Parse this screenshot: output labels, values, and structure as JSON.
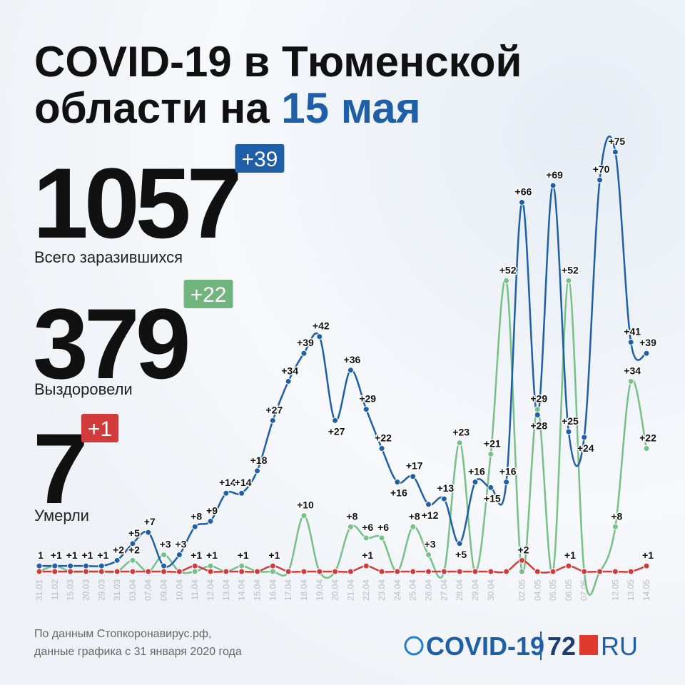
{
  "header": {
    "title_line1": "COVID-19 в Тюменской",
    "title_line2": "области на",
    "title_date": "15 мая"
  },
  "stats": [
    {
      "value": 1057,
      "change": "+39",
      "label": "Всего заразившихся",
      "color": "#1f5fa8"
    },
    {
      "value": 379,
      "change": "+22",
      "label": "Выздоровели",
      "color": "#6fb57d"
    },
    {
      "value": 7,
      "change": "+1",
      "label": "Умерли",
      "color": "#d23b3b"
    }
  ],
  "chart_data": {
    "type": "line",
    "categories": [
      "31.01",
      "11.02",
      "15.03",
      "20.03",
      "29.03",
      "31.03",
      "03.04",
      "07.04",
      "09.04",
      "10.04",
      "11.04",
      "12.04",
      "13.04",
      "14.04",
      "15.04",
      "16.04",
      "17.04",
      "18.04",
      "19.04",
      "20.04",
      "21.04",
      "22.04",
      "23.04",
      "24.04",
      "25.04",
      "26.04",
      "27.04",
      "28.04",
      "29.04",
      "30.04",
      null,
      "02.05",
      "04.05",
      "05.05",
      "06.05",
      "07.05",
      null,
      "12.05",
      "13.05",
      "14.05"
    ],
    "ylim": [
      0,
      80
    ],
    "series": [
      {
        "name": "Всего заразившихся",
        "color": "#1f5fa8",
        "values": [
          1,
          1,
          1,
          1,
          1,
          2,
          5,
          7,
          1,
          3,
          8,
          9,
          14,
          14,
          18,
          27,
          34,
          39,
          42,
          27,
          36,
          29,
          22,
          16,
          17,
          12,
          13,
          5,
          16,
          15,
          16,
          66,
          28,
          69,
          25,
          24,
          70,
          75,
          41,
          39
        ],
        "value_labels": [
          "1",
          "+1",
          "+1",
          "+1",
          "+1",
          "+2",
          "+5",
          "+7",
          null,
          "+3",
          "+8",
          "+9",
          "+14",
          "+14",
          "+18",
          "+27",
          "+34",
          "+39",
          "+42",
          "+27",
          "+36",
          "+29",
          "+22",
          "+16",
          "+17",
          "+12",
          "+13",
          "+5",
          "+16",
          "+15",
          "+16",
          "+66",
          "+28",
          "+69",
          "+25",
          "+24",
          "+70",
          "+75",
          "+41",
          "+39"
        ]
      },
      {
        "name": "Выздоровели",
        "color": "#79bf88",
        "values": [
          0,
          1,
          0,
          0,
          0,
          0,
          2,
          0,
          3,
          0,
          0,
          1,
          0,
          1,
          0,
          0,
          0,
          10,
          0,
          0,
          8,
          6,
          6,
          0,
          8,
          3,
          0,
          23,
          0,
          21,
          52,
          0,
          29,
          0,
          52,
          0,
          0,
          8,
          34,
          22
        ],
        "value_labels": [
          null,
          null,
          null,
          null,
          null,
          null,
          "+2",
          null,
          "+3",
          null,
          null,
          "+1",
          null,
          "+1",
          null,
          null,
          null,
          "+10",
          null,
          null,
          "+8",
          "+6",
          "+6",
          null,
          "+8",
          "+3",
          null,
          "+23",
          null,
          "+21",
          "+52",
          null,
          "+29",
          null,
          "+52",
          null,
          null,
          "+8",
          "+34",
          "+22"
        ]
      },
      {
        "name": "Умерли",
        "color": "#d23b3b",
        "values": [
          0,
          0,
          0,
          0,
          0,
          0,
          0,
          0,
          0,
          0,
          1,
          0,
          0,
          0,
          0,
          1,
          0,
          0,
          0,
          0,
          0,
          1,
          0,
          0,
          0,
          0,
          0,
          0,
          0,
          0,
          0,
          2,
          0,
          0,
          1,
          0,
          0,
          0,
          0,
          1
        ],
        "value_labels": [
          null,
          null,
          null,
          null,
          null,
          null,
          null,
          null,
          null,
          null,
          "+1",
          null,
          null,
          null,
          null,
          "+1",
          null,
          null,
          null,
          null,
          null,
          "+1",
          null,
          null,
          null,
          null,
          null,
          null,
          null,
          null,
          null,
          "+2",
          null,
          null,
          "+1",
          null,
          null,
          null,
          null,
          "+1"
        ]
      }
    ]
  },
  "footer": {
    "line1": "По данным Стопкоронавирус.рф,",
    "line2": "данные графика с 31 января 2020 года"
  },
  "logo": {
    "covid": "COVID-19",
    "num": "72",
    "ru": "RU"
  }
}
